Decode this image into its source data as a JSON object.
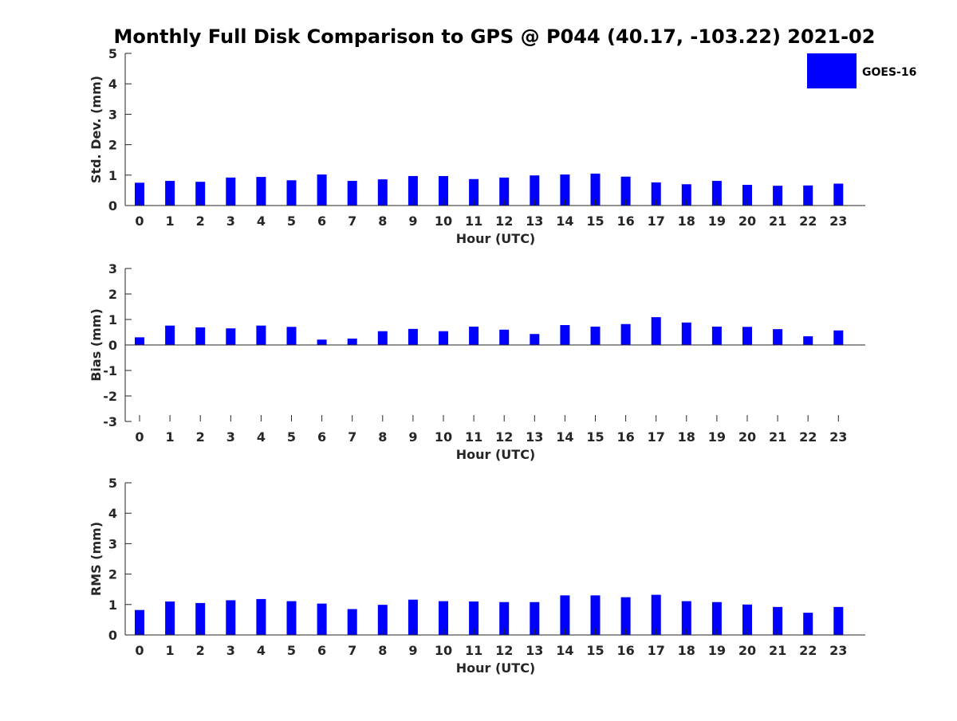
{
  "colors": {
    "bar": "#0000ff",
    "axis": "#262626"
  },
  "chart_data": [
    {
      "type": "bar",
      "title": "Monthly Full Disk Comparison to GPS @ P044 (40.17, -103.22) 2021-02",
      "xlabel": "Hour (UTC)",
      "ylabel": "Std. Dev. (mm)",
      "ylim": [
        0,
        5
      ],
      "yticks": [
        0,
        1,
        2,
        3,
        4,
        5
      ],
      "categories": [
        "0",
        "1",
        "2",
        "3",
        "4",
        "5",
        "6",
        "7",
        "8",
        "9",
        "10",
        "11",
        "12",
        "13",
        "14",
        "15",
        "16",
        "17",
        "18",
        "19",
        "20",
        "21",
        "22",
        "23"
      ],
      "series": [
        {
          "name": "GOES-16",
          "values": [
            0.75,
            0.81,
            0.78,
            0.92,
            0.94,
            0.83,
            1.02,
            0.81,
            0.86,
            0.97,
            0.97,
            0.87,
            0.92,
            0.99,
            1.02,
            1.05,
            0.95,
            0.76,
            0.7,
            0.81,
            0.68,
            0.65,
            0.66,
            0.72
          ]
        }
      ],
      "legend": {
        "position": "top-right",
        "entries": [
          "GOES-16"
        ]
      },
      "grid": false
    },
    {
      "type": "bar",
      "title": "",
      "xlabel": "Hour (UTC)",
      "ylabel": "Bias (mm)",
      "ylim": [
        -3,
        3
      ],
      "yticks": [
        -3,
        -2,
        -1,
        0,
        1,
        2,
        3
      ],
      "categories": [
        "0",
        "1",
        "2",
        "3",
        "4",
        "5",
        "6",
        "7",
        "8",
        "9",
        "10",
        "11",
        "12",
        "13",
        "14",
        "15",
        "16",
        "17",
        "18",
        "19",
        "20",
        "21",
        "22",
        "23"
      ],
      "series": [
        {
          "name": "GOES-16",
          "values": [
            0.3,
            0.76,
            0.69,
            0.65,
            0.76,
            0.71,
            0.21,
            0.25,
            0.54,
            0.63,
            0.54,
            0.72,
            0.6,
            0.43,
            0.78,
            0.72,
            0.82,
            1.09,
            0.88,
            0.72,
            0.71,
            0.62,
            0.34,
            0.57
          ]
        }
      ],
      "grid": false
    },
    {
      "type": "bar",
      "title": "",
      "xlabel": "Hour (UTC)",
      "ylabel": "RMS (mm)",
      "ylim": [
        0,
        5
      ],
      "yticks": [
        0,
        1,
        2,
        3,
        4,
        5
      ],
      "categories": [
        "0",
        "1",
        "2",
        "3",
        "4",
        "5",
        "6",
        "7",
        "8",
        "9",
        "10",
        "11",
        "12",
        "13",
        "14",
        "15",
        "16",
        "17",
        "18",
        "19",
        "20",
        "21",
        "22",
        "23"
      ],
      "series": [
        {
          "name": "GOES-16",
          "values": [
            0.82,
            1.1,
            1.05,
            1.14,
            1.18,
            1.11,
            1.03,
            0.85,
            0.99,
            1.16,
            1.11,
            1.1,
            1.08,
            1.08,
            1.3,
            1.3,
            1.24,
            1.32,
            1.11,
            1.08,
            1.0,
            0.92,
            0.73,
            0.92
          ]
        }
      ],
      "grid": false
    }
  ]
}
